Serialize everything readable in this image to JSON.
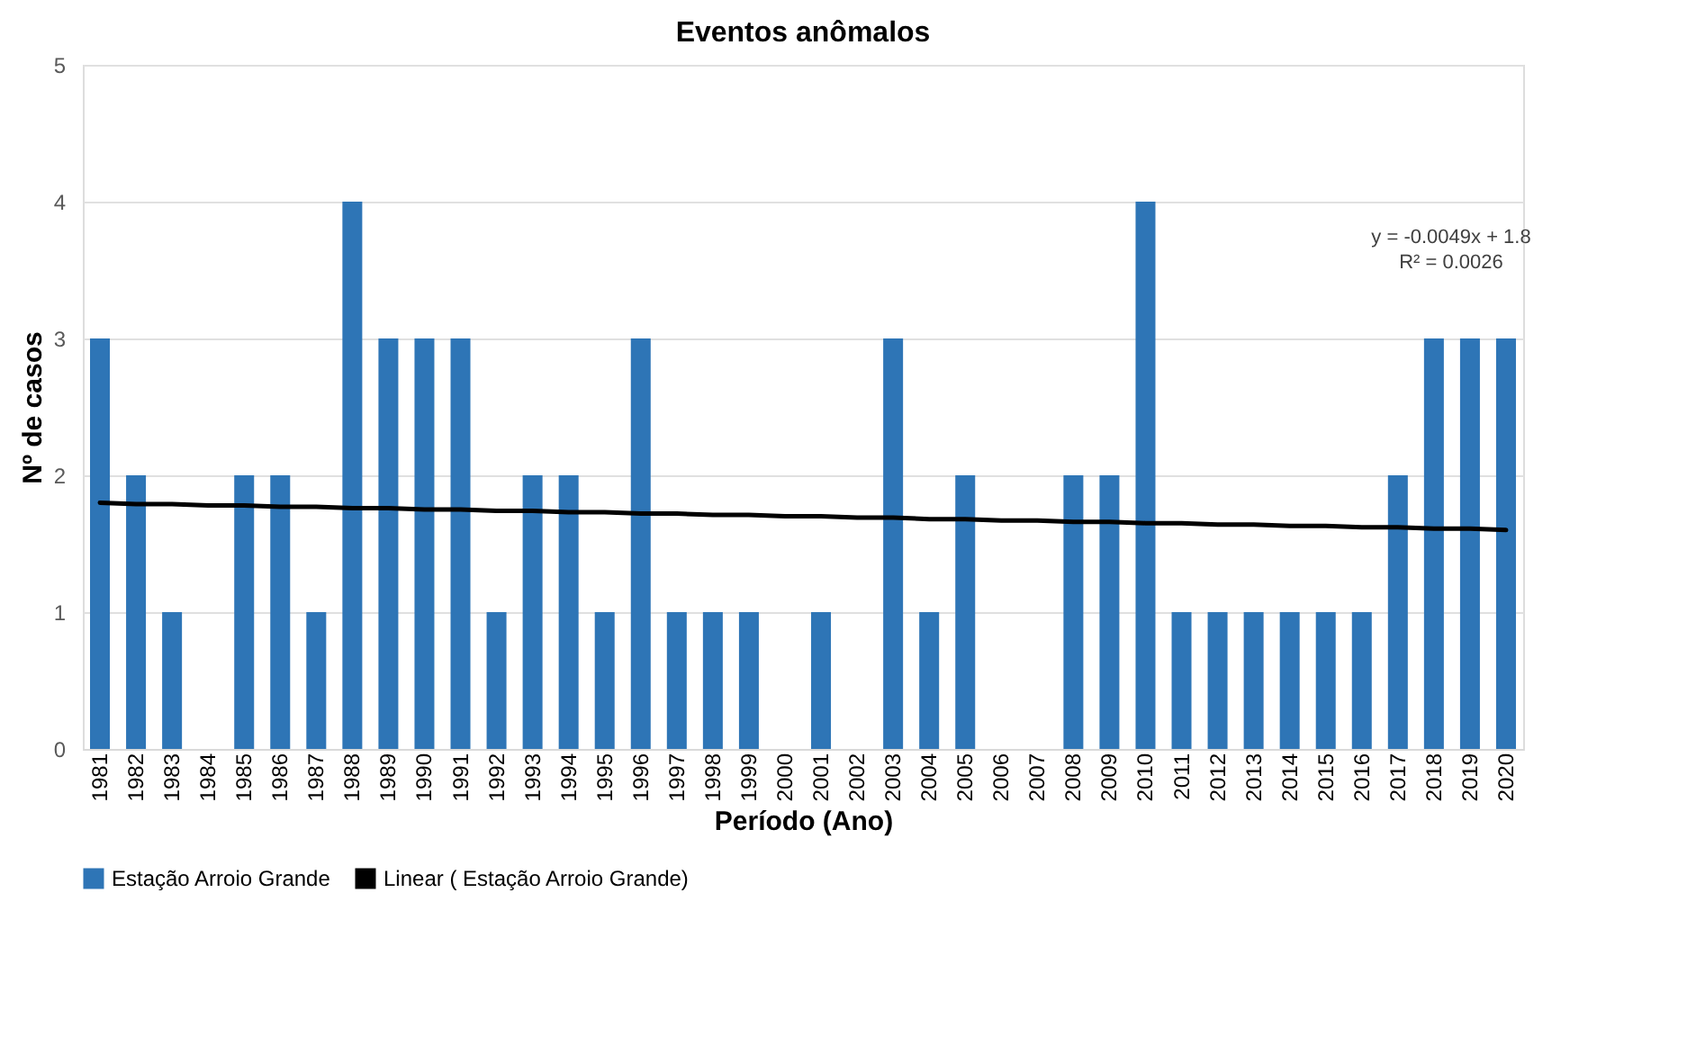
{
  "chart_data": {
    "type": "bar",
    "title": "Eventos anômalos",
    "xlabel": "Período (Ano)",
    "ylabel": "Nº de casos",
    "categories": [
      "1981",
      "1982",
      "1983",
      "1984",
      "1985",
      "1986",
      "1987",
      "1988",
      "1989",
      "1990",
      "1991",
      "1992",
      "1993",
      "1994",
      "1995",
      "1996",
      "1997",
      "1998",
      "1999",
      "2000",
      "2001",
      "2002",
      "2003",
      "2004",
      "2005",
      "2006",
      "2007",
      "2008",
      "2009",
      "2010",
      "2011",
      "2012",
      "2013",
      "2014",
      "2015",
      "2016",
      "2017",
      "2018",
      "2019",
      "2020"
    ],
    "series": [
      {
        "name": "Estação Arroio Grande",
        "color": "#2e75b6",
        "values": [
          3,
          2,
          1,
          0,
          2,
          2,
          1,
          4,
          3,
          3,
          3,
          1,
          2,
          2,
          1,
          3,
          1,
          1,
          1,
          0,
          1,
          0,
          3,
          1,
          2,
          0,
          0,
          2,
          2,
          4,
          1,
          1,
          1,
          1,
          1,
          1,
          2,
          3,
          3,
          3
        ]
      },
      {
        "name": "Linear ( Estação Arroio Grande)",
        "type": "line",
        "color": "#000000",
        "values": [
          1.8,
          1.79,
          1.79,
          1.78,
          1.78,
          1.77,
          1.77,
          1.76,
          1.76,
          1.75,
          1.75,
          1.74,
          1.74,
          1.73,
          1.73,
          1.72,
          1.72,
          1.71,
          1.71,
          1.7,
          1.7,
          1.69,
          1.69,
          1.68,
          1.68,
          1.67,
          1.67,
          1.66,
          1.66,
          1.65,
          1.65,
          1.64,
          1.64,
          1.63,
          1.63,
          1.62,
          1.62,
          1.61,
          1.61,
          1.6
        ]
      }
    ],
    "annotations": [
      "y = -0.0049x + 1.8",
      "R² = 0.0026"
    ],
    "ylim": [
      0,
      5
    ],
    "yticks": [
      0,
      1,
      2,
      3,
      4,
      5
    ],
    "grid": "y",
    "legend": "bottom"
  }
}
